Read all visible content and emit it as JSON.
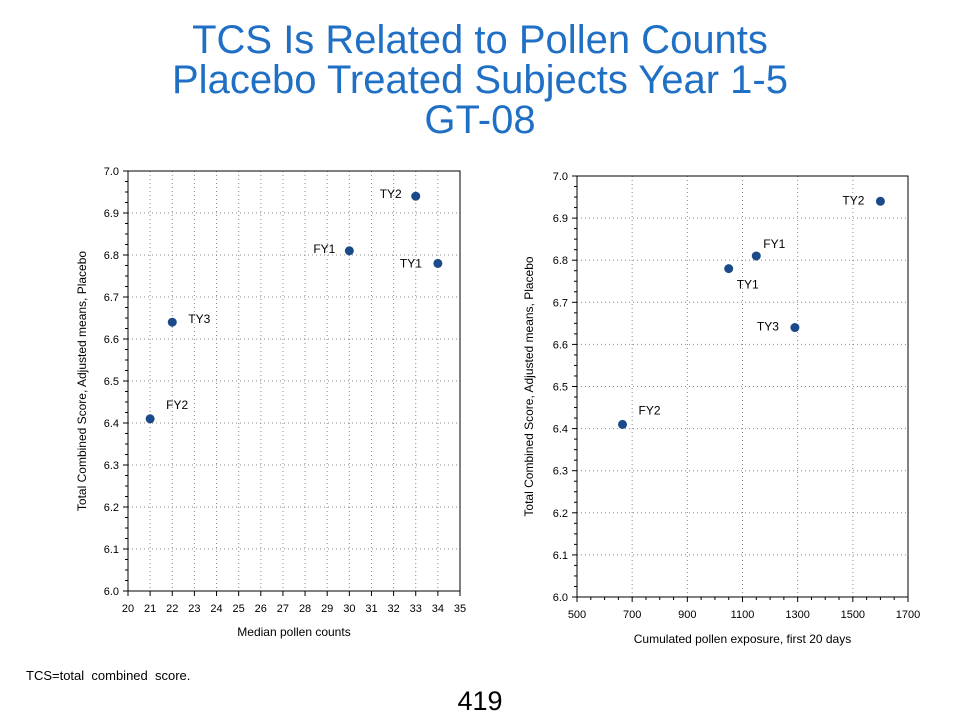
{
  "title": {
    "line1": "TCS Is Related to Pollen Counts",
    "line2": "Placebo Treated Subjects Year 1-5",
    "line3": "GT-08"
  },
  "footnote": "TCS=total  combined  score.",
  "page_number": "419",
  "colors": {
    "title": "#1f6fc5",
    "marker": "#1a4a8a",
    "grid": "#888888"
  },
  "chart_data": [
    {
      "type": "scatter",
      "title": "",
      "xlabel": "Median pollen counts",
      "ylabel": "Total Combined Score, Adjusted means, Placebo",
      "xlim": [
        20,
        35
      ],
      "ylim": [
        6.0,
        7.0
      ],
      "xticks": [
        "20",
        "21",
        "22",
        "23",
        "24",
        "25",
        "26",
        "27",
        "28",
        "29",
        "30",
        "31",
        "32",
        "33",
        "34",
        "35"
      ],
      "yticks": [
        "6.0",
        "6.1",
        "6.2",
        "6.3",
        "6.4",
        "6.5",
        "6.6",
        "6.7",
        "6.8",
        "6.9",
        "7.0"
      ],
      "grid": true,
      "points": [
        {
          "label": "FY2",
          "x": 21,
          "y": 6.41
        },
        {
          "label": "TY3",
          "x": 22,
          "y": 6.64
        },
        {
          "label": "FY1",
          "x": 30,
          "y": 6.81
        },
        {
          "label": "TY2",
          "x": 33,
          "y": 6.94
        },
        {
          "label": "TY1",
          "x": 34,
          "y": 6.78
        }
      ]
    },
    {
      "type": "scatter",
      "title": "",
      "xlabel": "Cumulated pollen exposure, first 20 days",
      "ylabel": "Total Combined Score, Adjusted means, Placebo",
      "xlim": [
        500,
        1700
      ],
      "ylim": [
        6.0,
        7.0
      ],
      "xticks": [
        "500",
        "700",
        "900",
        "1100",
        "1300",
        "1500",
        "1700"
      ],
      "yticks": [
        "6.0",
        "6.1",
        "6.2",
        "6.3",
        "6.4",
        "6.5",
        "6.6",
        "6.7",
        "6.8",
        "6.9",
        "7.0"
      ],
      "grid": true,
      "points": [
        {
          "label": "FY2",
          "x": 665,
          "y": 6.41
        },
        {
          "label": "TY1",
          "x": 1050,
          "y": 6.78
        },
        {
          "label": "FY1",
          "x": 1150,
          "y": 6.81
        },
        {
          "label": "TY3",
          "x": 1290,
          "y": 6.64
        },
        {
          "label": "TY2",
          "x": 1600,
          "y": 6.94
        }
      ]
    }
  ]
}
